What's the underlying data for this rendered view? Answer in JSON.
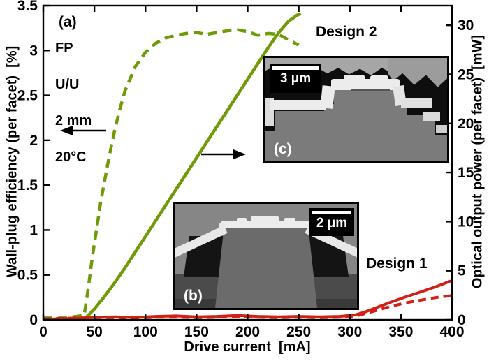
{
  "figure": {
    "annotations": {
      "panel_label": "(a)",
      "info_lines": [
        "FP",
        "U/U",
        "2 mm",
        "20°C"
      ],
      "design2_label": "Design 2",
      "design1_label": "Design 1"
    },
    "insets": {
      "b": {
        "label": "(b)",
        "scale_bar": "2 μm",
        "description": "SEM cross-section of Design 1 ridge"
      },
      "c": {
        "label": "(c)",
        "scale_bar": "3 μm",
        "description": "SEM cross-section of Design 2 ridge"
      }
    }
  },
  "chart_data": {
    "type": "line",
    "title": "",
    "xlabel": "Drive current  [mA]",
    "ylabel_left": "Wall-plug efficiency (per facet)  [%]",
    "ylabel_right": "Optical output power (per facet)  [mW]",
    "xlim": [
      0,
      400
    ],
    "ylim_left": [
      0,
      3.5
    ],
    "ylim_right": [
      0,
      32
    ],
    "xticks": [
      0,
      50,
      100,
      150,
      200,
      250,
      300,
      350,
      400
    ],
    "yticks_left": [
      0,
      0.5,
      1,
      1.5,
      2,
      2.5,
      3,
      3.5
    ],
    "yticks_right": [
      0,
      5,
      10,
      15,
      20,
      25,
      30
    ],
    "grid": false,
    "colors": {
      "design1": "#d22016",
      "design2": "#6e9b07",
      "axis": "#000000"
    },
    "series": [
      {
        "name": "Design 2 wall-plug efficiency",
        "axis": "left",
        "style": "dashed",
        "color_key": "design2",
        "x": [
          0,
          20,
          40,
          44,
          48,
          52,
          56,
          60,
          65,
          70,
          75,
          80,
          90,
          100,
          110,
          120,
          130,
          140,
          150,
          160,
          170,
          180,
          190,
          200,
          210,
          220,
          230,
          240,
          250
        ],
        "y": [
          0.02,
          0.02,
          0.05,
          0.35,
          0.7,
          1.0,
          1.3,
          1.55,
          1.85,
          2.12,
          2.35,
          2.55,
          2.82,
          2.98,
          3.08,
          3.14,
          3.17,
          3.19,
          3.2,
          3.18,
          3.2,
          3.22,
          3.23,
          3.21,
          3.17,
          3.19,
          3.18,
          3.12,
          3.06
        ]
      },
      {
        "name": "Design 2 optical output power",
        "axis": "right",
        "style": "solid",
        "color_key": "design2",
        "x": [
          0,
          20,
          40,
          50,
          60,
          70,
          80,
          90,
          100,
          110,
          120,
          130,
          140,
          150,
          160,
          170,
          180,
          190,
          200,
          210,
          220,
          230,
          240,
          248,
          252
        ],
        "y": [
          0,
          0,
          0.05,
          1.1,
          2.4,
          3.8,
          5.3,
          6.9,
          8.5,
          10.1,
          11.7,
          13.3,
          14.9,
          16.5,
          18.1,
          19.7,
          21.3,
          22.9,
          24.5,
          26.1,
          27.7,
          29.2,
          30.4,
          31.0,
          31.2
        ]
      },
      {
        "name": "Design 1 wall-plug efficiency",
        "axis": "left",
        "style": "dashed",
        "color_key": "design1",
        "x": [
          0,
          30,
          50,
          70,
          90,
          110,
          130,
          150,
          170,
          190,
          210,
          230,
          250,
          270,
          290,
          305,
          315,
          325,
          340,
          355,
          370,
          385,
          400
        ],
        "y": [
          0.01,
          0.02,
          0.025,
          0.025,
          0.02,
          0.03,
          0.03,
          0.025,
          0.03,
          0.035,
          0.03,
          0.025,
          0.03,
          0.025,
          0.03,
          0.04,
          0.07,
          0.1,
          0.15,
          0.19,
          0.22,
          0.25,
          0.27
        ]
      },
      {
        "name": "Design 1 optical output power",
        "axis": "right",
        "style": "solid",
        "color_key": "design1",
        "x": [
          0,
          30,
          50,
          70,
          90,
          110,
          130,
          150,
          170,
          190,
          210,
          230,
          250,
          270,
          290,
          305,
          315,
          325,
          340,
          355,
          370,
          385,
          400
        ],
        "y": [
          0.05,
          0.15,
          0.25,
          0.3,
          0.25,
          0.35,
          0.4,
          0.3,
          0.35,
          0.45,
          0.35,
          0.3,
          0.35,
          0.3,
          0.35,
          0.5,
          0.8,
          1.2,
          1.8,
          2.35,
          2.85,
          3.4,
          4.0
        ]
      }
    ],
    "arrows": [
      {
        "direction": "left",
        "meaning": "dashed curve reads left axis"
      },
      {
        "direction": "right",
        "meaning": "solid curve reads right axis"
      }
    ]
  }
}
